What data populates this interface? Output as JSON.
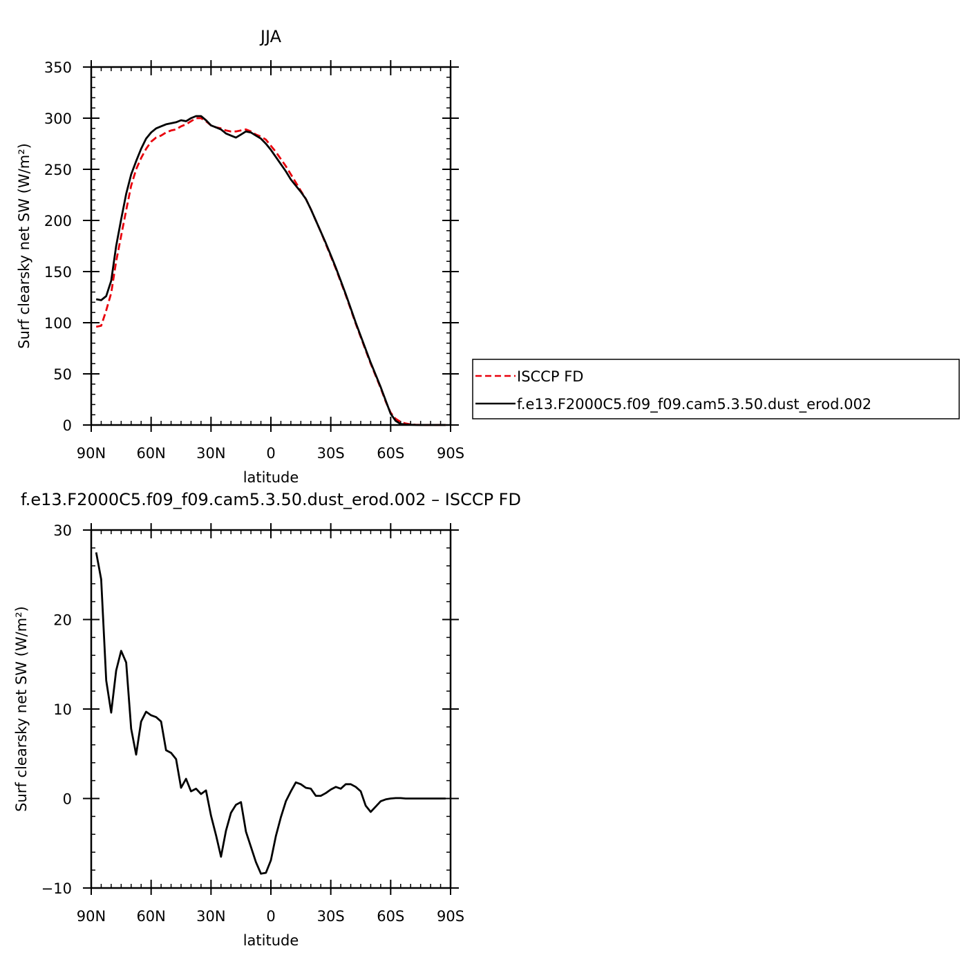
{
  "chart_data": [
    {
      "type": "line",
      "title": "JJA",
      "xlabel": "latitude",
      "ylabel": "Surf clearsky net SW (W/m²)",
      "xlim": [
        90,
        -90
      ],
      "ylim": [
        0,
        350
      ],
      "xticks": [
        90,
        60,
        30,
        0,
        -30,
        -60,
        -90
      ],
      "xtick_labels": [
        "90N",
        "60N",
        "30N",
        "0",
        "30S",
        "60S",
        "90S"
      ],
      "yticks": [
        0,
        50,
        100,
        150,
        200,
        250,
        300,
        350
      ],
      "ytick_labels": [
        "0",
        "50",
        "100",
        "150",
        "200",
        "250",
        "300",
        "350"
      ],
      "legend_position": "right",
      "series": [
        {
          "name": "ISCCP FD",
          "color": "#e8000b",
          "dash": "dashed",
          "x": [
            87.5,
            85,
            82.5,
            80,
            77.5,
            75,
            72.5,
            70,
            67.5,
            65,
            62.5,
            60,
            57.5,
            55,
            52.5,
            50,
            47.5,
            45,
            42.5,
            40,
            37.5,
            35,
            32.5,
            30,
            27.5,
            25,
            22.5,
            20,
            17.5,
            15,
            12.5,
            10,
            7.5,
            5,
            2.5,
            0,
            -2.5,
            -5,
            -7.5,
            -10,
            -12.5,
            -15,
            -17.5,
            -20,
            -22.5,
            -25,
            -27.5,
            -30,
            -32.5,
            -35,
            -37.5,
            -40,
            -42.5,
            -45,
            -47.5,
            -50,
            -52.5,
            -55,
            -57.5,
            -60,
            -62.5,
            -65,
            -67.5,
            -70,
            -72.5,
            -75,
            -77.5,
            -80,
            -82.5,
            -85,
            -87.5
          ],
          "values": [
            96,
            97,
            112,
            129,
            160,
            185,
            210,
            234,
            250,
            261,
            270,
            277,
            281,
            283,
            286,
            288,
            289,
            292,
            294,
            297,
            300,
            300,
            297,
            293,
            291,
            290,
            288,
            287,
            287,
            288,
            289,
            287,
            284,
            282,
            279,
            273,
            267,
            260,
            253,
            245,
            237,
            229,
            221,
            211,
            200,
            189,
            177,
            165,
            153,
            140,
            127,
            113,
            99,
            86,
            73,
            60,
            48,
            36,
            23,
            12,
            6,
            3,
            1.5,
            0.6,
            0.3,
            0.1,
            0,
            0,
            0,
            0,
            0
          ]
        },
        {
          "name": "f.e13.F2000C5.f09_f09.cam5.3.50.dust_erod.002",
          "color": "#000000",
          "dash": "solid",
          "x": [
            87.5,
            85,
            82.5,
            80,
            77.5,
            75,
            72.5,
            70,
            67.5,
            65,
            62.5,
            60,
            57.5,
            55,
            52.5,
            50,
            47.5,
            45,
            42.5,
            40,
            37.5,
            35,
            32.5,
            30,
            27.5,
            25,
            22.5,
            20,
            17.5,
            15,
            12.5,
            10,
            7.5,
            5,
            2.5,
            0,
            -2.5,
            -5,
            -7.5,
            -10,
            -12.5,
            -15,
            -17.5,
            -20,
            -22.5,
            -25,
            -27.5,
            -30,
            -32.5,
            -35,
            -37.5,
            -40,
            -42.5,
            -45,
            -47.5,
            -50,
            -52.5,
            -55,
            -57.5,
            -60,
            -62.5,
            -65,
            -67.5,
            -70,
            -72.5,
            -75,
            -77.5,
            -80,
            -82.5,
            -85,
            -87.5
          ],
          "values": [
            123,
            122,
            126,
            141,
            175,
            201,
            226,
            245,
            258,
            270,
            280,
            286,
            290,
            292,
            294,
            295,
            296,
            298,
            297,
            300,
            302,
            302,
            298,
            293,
            291,
            289,
            285,
            283,
            281,
            284,
            287,
            286,
            283,
            280,
            275,
            269,
            262,
            255,
            248,
            240,
            234,
            228,
            221,
            211,
            200,
            189,
            178,
            166,
            154,
            141,
            128,
            114,
            100,
            87,
            74,
            61,
            49,
            37,
            24,
            11,
            4,
            1,
            0.5,
            0.3,
            0.1,
            0,
            0,
            0,
            0,
            0,
            0
          ]
        }
      ]
    },
    {
      "type": "line",
      "title": "f.e13.F2000C5.f09_f09.cam5.3.50.dust_erod.002 – ISCCP FD",
      "xlabel": "latitude",
      "ylabel": "Surf clearsky net SW (W/m²)",
      "xlim": [
        90,
        -90
      ],
      "ylim": [
        -10,
        30
      ],
      "xticks": [
        90,
        60,
        30,
        0,
        -30,
        -60,
        -90
      ],
      "xtick_labels": [
        "90N",
        "60N",
        "30N",
        "0",
        "30S",
        "60S",
        "90S"
      ],
      "yticks": [
        -10,
        0,
        10,
        20,
        30
      ],
      "ytick_labels": [
        "−10",
        "0",
        "10",
        "20",
        "30"
      ],
      "series": [
        {
          "color": "#000000",
          "dash": "solid",
          "x": [
            87.5,
            85,
            82.5,
            80,
            77.5,
            75,
            72.5,
            70,
            67.5,
            65,
            62.5,
            60,
            57.5,
            55,
            52.5,
            50,
            47.5,
            45,
            42.5,
            40,
            37.5,
            35,
            32.5,
            30,
            27.5,
            25,
            22.5,
            20,
            17.5,
            15,
            12.5,
            10,
            7.5,
            5,
            2.5,
            0,
            -2.5,
            -5,
            -7.5,
            -10,
            -12.5,
            -15,
            -17.5,
            -20,
            -22.5,
            -25,
            -27.5,
            -30,
            -32.5,
            -35,
            -37.5,
            -40,
            -42.5,
            -45,
            -47.5,
            -50,
            -52.5,
            -55,
            -57.5,
            -60,
            -62.5,
            -65,
            -67.5,
            -70,
            -72.5,
            -75,
            -77.5,
            -80,
            -82.5,
            -85,
            -87.5
          ],
          "values": [
            27.5,
            24.5,
            13.2,
            9.6,
            14.3,
            16.5,
            15.2,
            7.8,
            4.9,
            8.6,
            9.7,
            9.3,
            9.1,
            8.6,
            5.4,
            5.1,
            4.4,
            1.2,
            2.2,
            0.8,
            1.1,
            0.5,
            0.9,
            -1.9,
            -4.1,
            -6.5,
            -3.6,
            -1.6,
            -0.7,
            -0.4,
            -3.7,
            -5.4,
            -7.1,
            -8.4,
            -8.3,
            -6.9,
            -4.2,
            -2.1,
            -0.3,
            0.8,
            1.8,
            1.6,
            1.2,
            1.1,
            0.3,
            0.3,
            0.6,
            1.0,
            1.3,
            1.1,
            1.6,
            1.6,
            1.3,
            0.8,
            -0.8,
            -1.5,
            -0.9,
            -0.3,
            -0.1,
            0,
            0.05,
            0.05,
            0,
            0,
            0,
            0,
            0,
            0,
            0,
            0,
            0
          ]
        }
      ]
    }
  ]
}
